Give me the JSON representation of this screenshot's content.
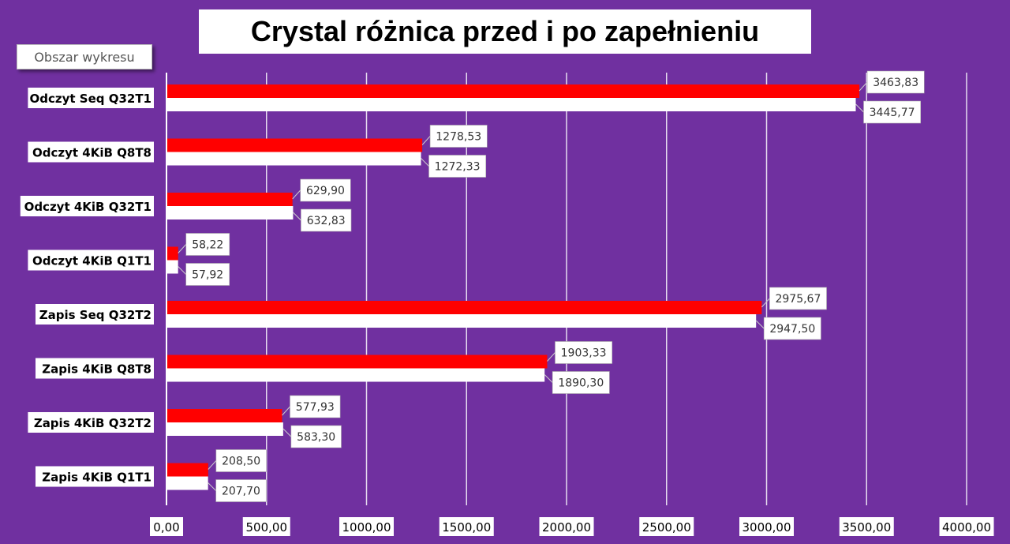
{
  "tooltip": "Obszar wykresu",
  "chart_data": {
    "type": "bar",
    "orientation": "horizontal",
    "title": "Crystal różnica przed i po zapełnieniu",
    "categories": [
      "Odczyt Seq Q32T1",
      "Odczyt 4KiB Q8T8",
      "Odczyt 4KiB Q32T1",
      "Odczyt 4KiB Q1T1",
      "Zapis Seq Q32T2",
      "Zapis 4KiB Q8T8",
      "Zapis 4KiB Q32T2",
      "Zapis 4KiB Q1T1"
    ],
    "series": [
      {
        "color": "#ff0000",
        "values": [
          3463.83,
          1278.53,
          629.9,
          58.22,
          2975.67,
          1903.33,
          577.93,
          208.5
        ],
        "labels": [
          "3463,83",
          "1278,53",
          "629,90",
          "58,22",
          "2975,67",
          "1903,33",
          "577,93",
          "208,50"
        ]
      },
      {
        "color": "#ffffff",
        "values": [
          3445.77,
          1272.33,
          632.83,
          57.92,
          2947.5,
          1890.3,
          583.3,
          207.7
        ],
        "labels": [
          "3445,77",
          "1272,33",
          "632,83",
          "57,92",
          "2947,50",
          "1890,30",
          "583,30",
          "207,70"
        ]
      }
    ],
    "xlim": [
      0,
      4000
    ],
    "xticks": [
      0,
      500,
      1000,
      1500,
      2000,
      2500,
      3000,
      3500,
      4000
    ],
    "xtick_labels": [
      "0,00",
      "500,00",
      "1000,00",
      "1500,00",
      "2000,00",
      "2500,00",
      "3000,00",
      "3500,00",
      "4000,00"
    ],
    "grid": true,
    "background": "#7030a0",
    "legend": "none"
  }
}
